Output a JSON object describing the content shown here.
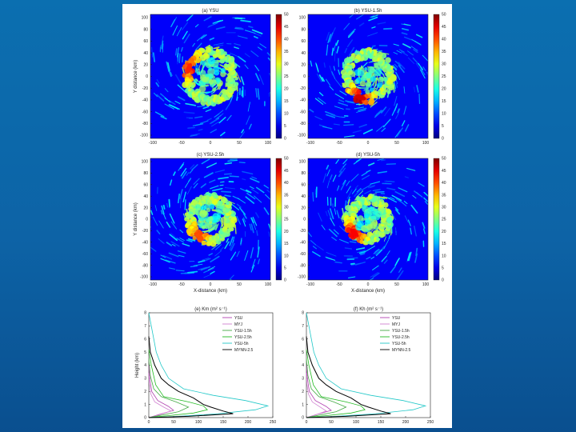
{
  "chart_data": [
    {
      "type": "heatmap",
      "title": "(a) YSU",
      "xlim": [
        -100,
        100
      ],
      "ylim": [
        -100,
        100
      ],
      "x_ticks": [
        "-100",
        "-50",
        "0",
        "50",
        "100"
      ],
      "y_ticks": [
        "100",
        "80",
        "60",
        "40",
        "20",
        "0",
        "-20",
        "-40",
        "-60",
        "-80",
        "-100"
      ],
      "xlabel": "",
      "ylabel": "Y distance (km)",
      "colorbar": {
        "min": 0,
        "max": 50,
        "ticks": [
          "50",
          "45",
          "40",
          "35",
          "30",
          "25",
          "20",
          "15",
          "10",
          "5",
          "0"
        ]
      },
      "eyewall": {
        "radius_km": 38,
        "peak": 42,
        "hotspot_angle_deg": 160
      }
    },
    {
      "type": "heatmap",
      "title": "(b) YSU-1.5h",
      "xlim": [
        -100,
        100
      ],
      "ylim": [
        -100,
        100
      ],
      "x_ticks": [
        "-100",
        "-50",
        "0",
        "50",
        "100"
      ],
      "y_ticks": [
        "100",
        "80",
        "60",
        "40",
        "20",
        "0",
        "-20",
        "-40",
        "-60",
        "-80",
        "-100"
      ],
      "xlabel": "",
      "ylabel": "",
      "colorbar": {
        "min": 0,
        "max": 50,
        "ticks": [
          "50",
          "45",
          "40",
          "35",
          "30",
          "25",
          "20",
          "15",
          "10",
          "5",
          "0"
        ]
      },
      "eyewall": {
        "radius_km": 36,
        "peak": 46,
        "hotspot_angle_deg": 250
      }
    },
    {
      "type": "heatmap",
      "title": "(c) YSU-2.5h",
      "xlim": [
        -100,
        100
      ],
      "ylim": [
        -100,
        100
      ],
      "x_ticks": [
        "-100",
        "-50",
        "0",
        "50",
        "100"
      ],
      "y_ticks": [
        "100",
        "80",
        "60",
        "40",
        "20",
        "0",
        "-20",
        "-40",
        "-60",
        "-80",
        "-100"
      ],
      "xlabel": "X-distance (km)",
      "ylabel": "Y distance (km)",
      "colorbar": {
        "min": 0,
        "max": 50,
        "ticks": [
          "50",
          "45",
          "40",
          "35",
          "30",
          "25",
          "20",
          "15",
          "10",
          "5",
          "0"
        ]
      },
      "eyewall": {
        "radius_km": 34,
        "peak": 40,
        "hotspot_angle_deg": 235
      }
    },
    {
      "type": "heatmap",
      "title": "(d) YSU-5h",
      "xlim": [
        -100,
        100
      ],
      "ylim": [
        -100,
        100
      ],
      "x_ticks": [
        "-100",
        "-50",
        "0",
        "50",
        "100"
      ],
      "y_ticks": [
        "100",
        "80",
        "60",
        "40",
        "20",
        "0",
        "-20",
        "-40",
        "-60",
        "-80",
        "-100"
      ],
      "xlabel": "X-distance (km)",
      "ylabel": "",
      "colorbar": {
        "min": 0,
        "max": 50,
        "ticks": [
          "50",
          "45",
          "40",
          "35",
          "30",
          "25",
          "20",
          "15",
          "10",
          "5",
          "0"
        ]
      },
      "eyewall": {
        "radius_km": 32,
        "peak": 44,
        "hotspot_angle_deg": 225
      }
    },
    {
      "type": "line",
      "title": "(e) Km (m² s⁻¹)",
      "xlabel": "",
      "ylabel": "Height (km)",
      "xlim": [
        0,
        250
      ],
      "ylim": [
        0,
        8
      ],
      "x_ticks": [
        "0",
        "50",
        "100",
        "150",
        "200",
        "250"
      ],
      "y_ticks": [
        "0",
        "1",
        "2",
        "3",
        "4",
        "5",
        "6",
        "7",
        "8"
      ],
      "legend_position": "top-right",
      "series": [
        {
          "name": "YSU",
          "color": "#b040b0",
          "x": [
            0,
            22,
            50,
            40,
            18,
            6,
            2,
            0
          ],
          "y": [
            0,
            0.25,
            0.55,
            0.85,
            1.3,
            2.0,
            3.0,
            4.0
          ]
        },
        {
          "name": "MYJ",
          "color": "#d080d0",
          "x": [
            0,
            20,
            45,
            30,
            12,
            4,
            1,
            0
          ],
          "y": [
            0,
            0.2,
            0.5,
            0.8,
            1.2,
            1.8,
            2.6,
            3.4
          ]
        },
        {
          "name": "YSU-1.5h",
          "color": "#44aa44",
          "x": [
            0,
            28,
            60,
            80,
            55,
            25,
            10,
            3,
            0
          ],
          "y": [
            0,
            0.2,
            0.45,
            0.8,
            1.2,
            1.6,
            2.2,
            3.2,
            4.5
          ]
        },
        {
          "name": "YSU-2.5h",
          "color": "#22bb22",
          "x": [
            0,
            40,
            90,
            118,
            110,
            80,
            30,
            14,
            5,
            0
          ],
          "y": [
            0,
            0.15,
            0.35,
            0.6,
            0.9,
            1.2,
            1.6,
            2.5,
            4.0,
            5.2
          ]
        },
        {
          "name": "YSU-5h",
          "color": "#22c8c8",
          "x": [
            0,
            60,
            140,
            215,
            240,
            195,
            130,
            70,
            40,
            25,
            15,
            0
          ],
          "y": [
            0,
            0.1,
            0.3,
            0.6,
            0.9,
            1.3,
            1.7,
            2.2,
            3.0,
            4.0,
            5.0,
            8.0
          ]
        },
        {
          "name": "MYNN-2.5",
          "color": "#000000",
          "x": [
            0,
            80,
            170,
            150,
            125,
            110,
            90,
            60,
            40,
            25,
            12,
            3,
            0
          ],
          "y": [
            0,
            0.1,
            0.3,
            0.5,
            0.8,
            1.0,
            1.5,
            2.0,
            2.5,
            3.0,
            4.0,
            5.0,
            6.2
          ]
        }
      ]
    },
    {
      "type": "line",
      "title": "(f) Kh (m² s⁻¹)",
      "xlabel": "",
      "ylabel": "",
      "xlim": [
        0,
        250
      ],
      "ylim": [
        0,
        8
      ],
      "x_ticks": [
        "0",
        "50",
        "100",
        "150",
        "200",
        "250"
      ],
      "y_ticks": [
        "0",
        "1",
        "2",
        "3",
        "4",
        "5",
        "6",
        "7",
        "8"
      ],
      "legend_position": "top-right",
      "series": [
        {
          "name": "YSU",
          "color": "#b040b0",
          "x": [
            0,
            22,
            50,
            40,
            18,
            6,
            2,
            0
          ],
          "y": [
            0,
            0.25,
            0.55,
            0.85,
            1.3,
            2.0,
            3.0,
            4.0
          ]
        },
        {
          "name": "MYJ",
          "color": "#d080d0",
          "x": [
            0,
            18,
            40,
            28,
            12,
            4,
            1,
            0
          ],
          "y": [
            0,
            0.2,
            0.5,
            0.8,
            1.2,
            1.8,
            2.6,
            3.4
          ]
        },
        {
          "name": "YSU-1.5h",
          "color": "#44aa44",
          "x": [
            0,
            28,
            60,
            80,
            55,
            25,
            10,
            3,
            0
          ],
          "y": [
            0,
            0.2,
            0.45,
            0.8,
            1.2,
            1.6,
            2.2,
            3.2,
            4.5
          ]
        },
        {
          "name": "YSU-2.5h",
          "color": "#22bb22",
          "x": [
            0,
            40,
            90,
            118,
            110,
            80,
            30,
            14,
            5,
            0
          ],
          "y": [
            0,
            0.15,
            0.35,
            0.6,
            0.9,
            1.2,
            1.6,
            2.5,
            4.0,
            5.2
          ]
        },
        {
          "name": "YSU-5h",
          "color": "#22c8c8",
          "x": [
            0,
            60,
            140,
            215,
            240,
            195,
            130,
            70,
            40,
            25,
            15,
            0
          ],
          "y": [
            0,
            0.1,
            0.3,
            0.6,
            0.9,
            1.3,
            1.7,
            2.2,
            3.0,
            4.0,
            5.0,
            8.0
          ]
        },
        {
          "name": "MYNN-2.5",
          "color": "#000000",
          "x": [
            0,
            80,
            170,
            150,
            125,
            110,
            90,
            60,
            40,
            25,
            12,
            3,
            0
          ],
          "y": [
            0,
            0.1,
            0.3,
            0.5,
            0.8,
            1.0,
            1.5,
            2.0,
            2.5,
            3.0,
            4.0,
            5.0,
            6.2
          ]
        }
      ]
    }
  ]
}
